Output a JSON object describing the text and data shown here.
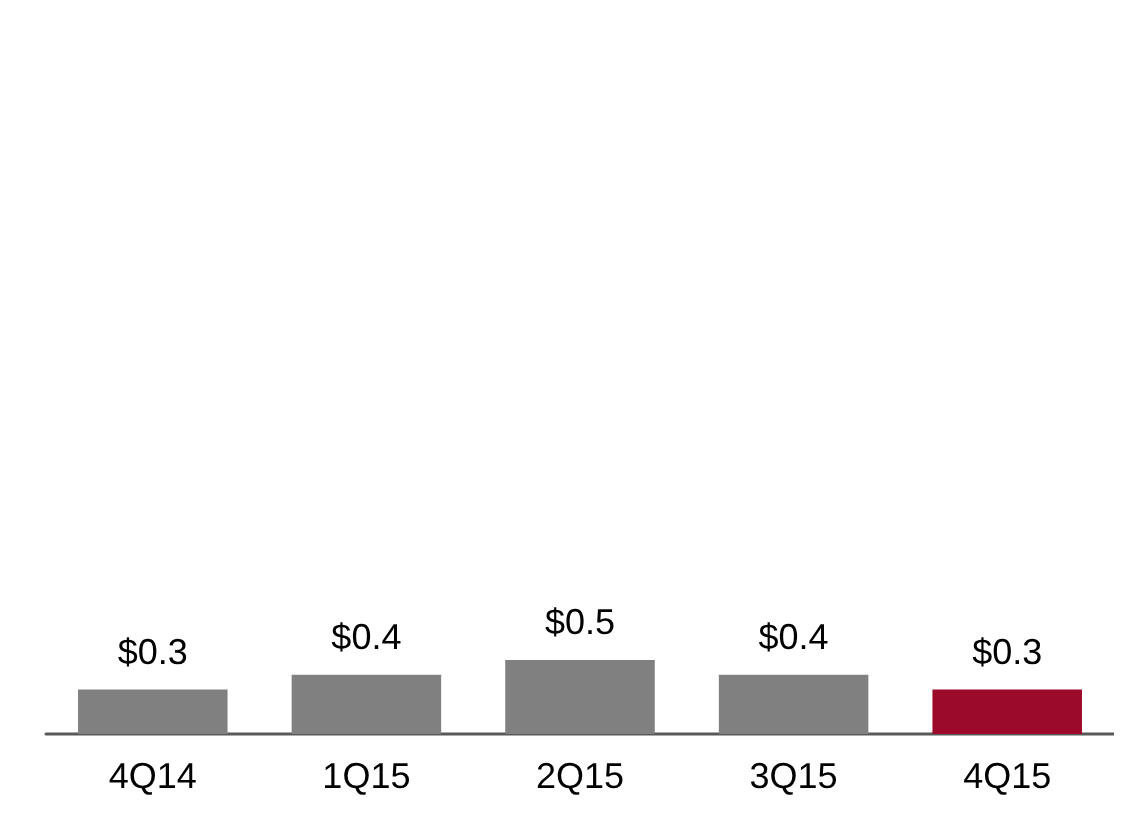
{
  "chart_data": {
    "type": "bar",
    "categories": [
      "4Q14",
      "1Q15",
      "2Q15",
      "3Q15",
      "4Q15"
    ],
    "values": [
      0.3,
      0.4,
      0.5,
      0.4,
      0.3
    ],
    "colors": [
      "#808080",
      "#808080",
      "#808080",
      "#808080",
      "#9b0a2a"
    ],
    "value_labels": [
      "$0.3",
      "$0.4",
      "$0.5",
      "$0.4",
      "$0.3"
    ]
  }
}
